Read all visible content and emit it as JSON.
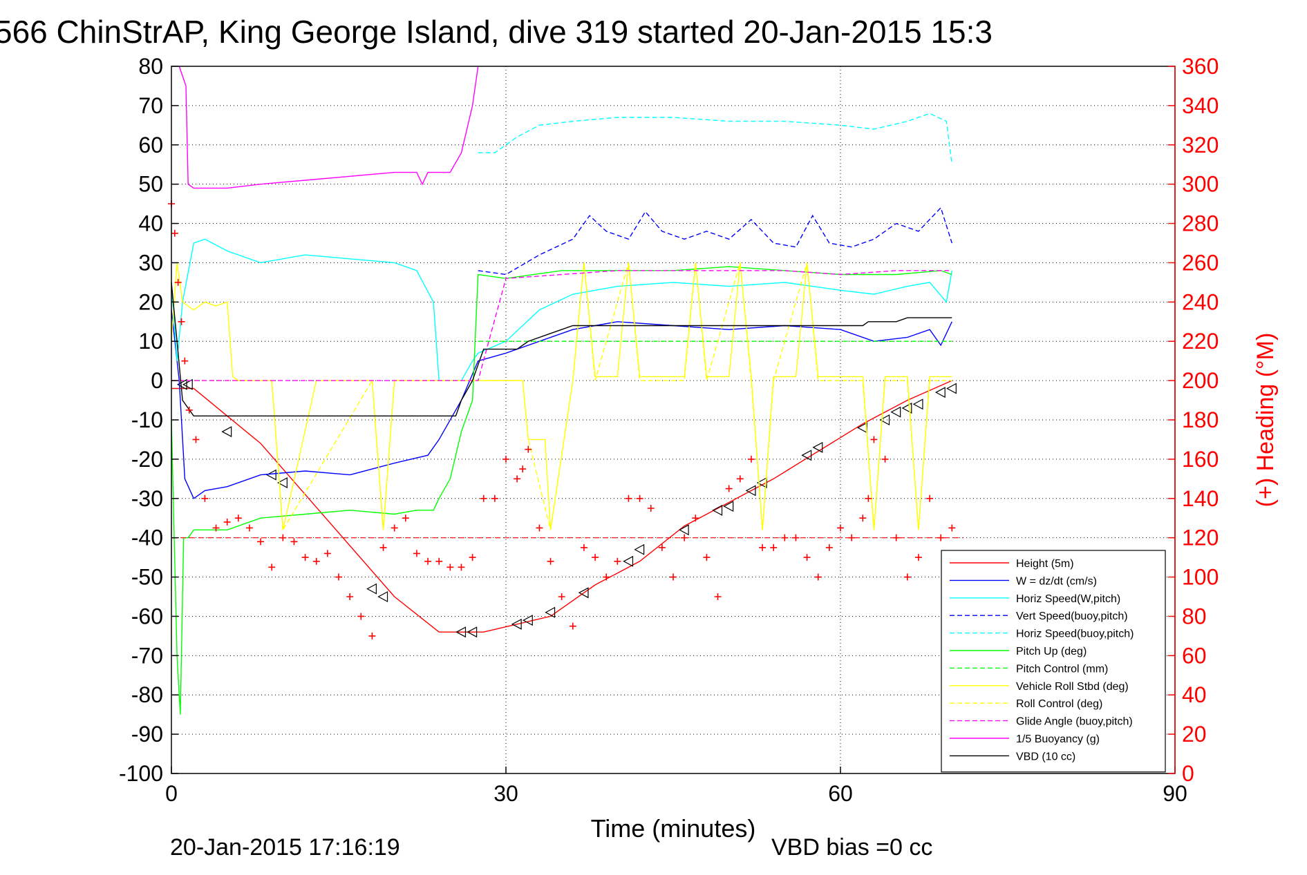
{
  "chart_data": {
    "type": "line",
    "title": "566 ChinStrAP, King George Island, dive 319 started 20-Jan-2015 15:3",
    "xlabel": "Time (minutes)",
    "ylabel_right": "(+) Heading (°M)",
    "footer_left": "20-Jan-2015 17:16:19",
    "footer_right": "VBD bias =0 cc",
    "xlim": [
      0,
      90
    ],
    "ylim": [
      -100,
      80
    ],
    "ylim_right": [
      0,
      360
    ],
    "x_ticks": [
      "0",
      "30",
      "60",
      "90"
    ],
    "y_ticks": [
      "80",
      "70",
      "60",
      "50",
      "40",
      "30",
      "20",
      "10",
      "0",
      "-10",
      "-20",
      "-30",
      "-40",
      "-50",
      "-60",
      "-70",
      "-80",
      "-90",
      "-100"
    ],
    "y_ticks_right": [
      "360",
      "340",
      "320",
      "300",
      "280",
      "260",
      "240",
      "220",
      "200",
      "180",
      "160",
      "140",
      "120",
      "100",
      "80",
      "60",
      "40",
      "20",
      "0"
    ],
    "grid": true,
    "legend_position": "bottom-right",
    "series": [
      {
        "name": "Height (5m)",
        "color": "#ff0000",
        "style": "solid",
        "x": [
          0,
          0.5,
          2,
          5,
          8,
          12,
          16,
          20,
          24,
          26,
          28,
          31,
          34,
          38,
          42,
          46,
          50,
          54,
          58,
          62,
          66,
          70
        ],
        "y": [
          -2,
          -2,
          -2,
          -9,
          -16,
          -29,
          -42,
          -55,
          -64,
          -64,
          -64,
          -62,
          -60,
          -52,
          -46,
          -37,
          -31,
          -25,
          -18,
          -11,
          -5,
          0
        ],
        "markers_x": [
          1,
          1.5,
          5,
          9,
          10,
          18,
          19,
          26,
          27,
          31,
          32,
          34,
          37,
          41,
          42,
          46,
          49,
          50,
          52,
          53,
          57,
          58,
          62,
          64,
          65,
          66,
          67,
          69,
          70
        ],
        "markers_y": [
          -1,
          -1,
          -13,
          -24,
          -26,
          -53,
          -55,
          -64,
          -64,
          -62,
          -61,
          -59,
          -54,
          -46,
          -43,
          -38,
          -33,
          -32,
          -28,
          -26,
          -19,
          -17,
          -12,
          -10,
          -8,
          -7,
          -6,
          -3,
          -2
        ]
      },
      {
        "name": "W = dz/dt (cm/s)",
        "color": "#0000ff",
        "style": "solid",
        "x": [
          0,
          0.7,
          1.2,
          2,
          3,
          5,
          8,
          12,
          16,
          20,
          23,
          24,
          26,
          27.5,
          30,
          33,
          36,
          40,
          45,
          50,
          55,
          60,
          63,
          66,
          68,
          69,
          70
        ],
        "y": [
          18,
          0,
          -25,
          -30,
          -28,
          -27,
          -24,
          -23,
          -24,
          -21,
          -19,
          -15,
          -5,
          5,
          7,
          10,
          13,
          15,
          14,
          13,
          14,
          13,
          10,
          11,
          13,
          9,
          15
        ]
      },
      {
        "name": "Horiz Speed(W,pitch)",
        "color": "#00ffff",
        "style": "solid",
        "x": [
          0,
          0.5,
          1,
          2,
          3,
          5,
          8,
          12,
          16,
          20,
          22,
          23.5,
          24,
          26,
          27,
          27.5,
          30,
          33,
          36,
          40,
          45,
          50,
          55,
          60,
          63,
          66,
          68,
          69.5,
          70
        ],
        "y": [
          25,
          5,
          20,
          35,
          36,
          33,
          30,
          32,
          31,
          30,
          28,
          20,
          0,
          0,
          5,
          7,
          10,
          18,
          22,
          24,
          25,
          24,
          25,
          23,
          22,
          24,
          25,
          20,
          28
        ]
      },
      {
        "name": "Vert Speed(buoy,pitch)",
        "color": "#0000ff",
        "style": "dashed",
        "x": [
          27.5,
          30,
          33,
          36,
          37.5,
          39,
          41,
          42.5,
          44,
          46,
          48,
          50,
          52,
          54,
          56,
          57.5,
          59,
          61,
          63,
          65,
          67,
          69,
          70
        ],
        "y": [
          28,
          27,
          32,
          36,
          42,
          38,
          36,
          43,
          38,
          36,
          38,
          36,
          41,
          35,
          34,
          42,
          35,
          34,
          36,
          40,
          38,
          44,
          35
        ]
      },
      {
        "name": "Horiz Speed(buoy,pitch)",
        "color": "#00ffff",
        "style": "dashed",
        "x": [
          27.5,
          29,
          31,
          33,
          36,
          40,
          45,
          50,
          55,
          60,
          63,
          66,
          68,
          69.5,
          70
        ],
        "y": [
          58,
          58,
          62,
          65,
          66,
          67,
          67,
          66,
          66,
          65,
          64,
          66,
          68,
          66,
          55
        ]
      },
      {
        "name": "Pitch Up (deg)",
        "color": "#00ff00",
        "style": "solid",
        "x": [
          0,
          0.5,
          0.8,
          1.1,
          1.5,
          2,
          3,
          5,
          8,
          12,
          16,
          20,
          22,
          23.5,
          24,
          25,
          26,
          27,
          27.5,
          30,
          35,
          40,
          45,
          50,
          55,
          60,
          65,
          69,
          70
        ],
        "y": [
          -10,
          -70,
          -85,
          -40,
          -40,
          -38,
          -38,
          -38,
          -35,
          -34,
          -33,
          -34,
          -33,
          -33,
          -30,
          -25,
          -13,
          -5,
          27,
          26,
          28,
          28,
          28,
          29,
          28,
          27,
          27,
          28,
          27
        ]
      },
      {
        "name": "Pitch Control (mm)",
        "color": "#00ff00",
        "style": "dashed",
        "x": [
          27.5,
          35,
          45,
          55,
          65,
          70
        ],
        "y": [
          10,
          10,
          10,
          10,
          10,
          10
        ]
      },
      {
        "name": "Vehicle Roll Stbd (deg)",
        "color": "#ffff00",
        "style": "solid",
        "x": [
          0,
          0.5,
          1,
          2,
          3,
          4,
          5,
          5.5,
          6,
          9,
          10,
          13,
          18,
          19,
          20,
          22,
          24,
          26,
          28,
          30,
          31.5,
          32,
          33.5,
          34,
          36,
          37,
          38,
          40,
          41,
          42,
          44,
          46,
          47,
          48,
          50,
          51,
          52,
          53,
          54,
          56,
          57,
          58,
          60,
          62,
          63,
          64,
          66,
          67,
          68,
          69,
          70
        ],
        "y": [
          10,
          30,
          20,
          18,
          20,
          19,
          20,
          1,
          0,
          0,
          -38,
          0,
          0,
          -38,
          0,
          0,
          0,
          0,
          0,
          0,
          0,
          -15,
          -15,
          -38,
          0,
          30,
          1,
          1,
          30,
          1,
          1,
          1,
          30,
          1,
          1,
          30,
          1,
          -38,
          1,
          1,
          30,
          1,
          1,
          1,
          -38,
          1,
          1,
          -38,
          1,
          1,
          1
        ]
      },
      {
        "name": "Roll Control (deg)",
        "color": "#ffff00",
        "style": "dashed",
        "x": [
          0,
          2,
          5,
          9,
          10,
          18,
          19,
          20,
          28,
          31.5,
          32,
          34,
          36,
          37,
          38,
          41,
          42,
          46,
          47,
          48,
          51,
          52,
          53,
          54,
          57,
          58,
          62,
          63,
          64,
          66,
          67,
          68,
          70
        ],
        "y": [
          0,
          0,
          0,
          0,
          -38,
          0,
          -38,
          0,
          0,
          0,
          -15,
          -38,
          0,
          30,
          0,
          30,
          0,
          0,
          30,
          0,
          30,
          0,
          -38,
          0,
          30,
          0,
          0,
          -38,
          0,
          0,
          -38,
          0,
          0
        ]
      },
      {
        "name": "Glide Angle (buoy,pitch)",
        "color": "#ff00ff",
        "style": "dashed",
        "x": [
          0,
          10,
          20,
          27.5,
          30,
          35,
          40,
          45,
          50,
          55,
          60,
          65,
          70
        ],
        "y": [
          0,
          0,
          0,
          0,
          26,
          27,
          28,
          28,
          28,
          28,
          27,
          28,
          28
        ]
      },
      {
        "name": "1/5 Buoyancy (g)",
        "color": "#ff00ff",
        "style": "solid",
        "x": [
          0.7,
          1.3,
          1.5,
          2,
          5,
          8,
          12,
          16,
          20,
          22,
          22.5,
          23,
          25,
          26,
          27,
          27.5
        ],
        "y": [
          80,
          75,
          50,
          49,
          49,
          50,
          51,
          52,
          53,
          53,
          50,
          53,
          53,
          58,
          70,
          80
        ]
      },
      {
        "name": "VBD (10 cc)",
        "color": "#000000",
        "style": "solid",
        "x": [
          0,
          0.5,
          1,
          2,
          5,
          10,
          15,
          20,
          25,
          25.5,
          26,
          27,
          28,
          30,
          31,
          32,
          34,
          36,
          40,
          45,
          50,
          55,
          60,
          62,
          62.5,
          65,
          66,
          68,
          70
        ],
        "y": [
          25,
          10,
          -5,
          -9,
          -9,
          -9,
          -9,
          -9,
          -9,
          -9,
          -5,
          0,
          8,
          8,
          8,
          10,
          12,
          14,
          14,
          14,
          14,
          14,
          14,
          14,
          15,
          15,
          16,
          16,
          16
        ]
      },
      {
        "name": "Heading",
        "axis": "right",
        "color": "#ff0000",
        "style": "plus",
        "x": [
          0,
          0.3,
          0.6,
          0.9,
          1.2,
          1.6,
          2.2,
          3,
          4,
          5,
          6,
          7,
          8,
          9,
          10,
          11,
          12,
          13,
          14,
          15,
          16,
          17,
          18,
          19,
          20,
          21,
          22,
          23,
          24,
          25,
          26,
          27,
          28,
          29,
          30,
          31,
          31.5,
          32,
          33,
          34,
          35,
          36,
          37,
          38,
          39,
          40,
          41,
          42,
          43,
          44,
          45,
          46,
          47,
          48,
          49,
          50,
          51,
          52,
          53,
          54,
          55,
          56,
          57,
          58,
          59,
          60,
          61,
          62,
          62.5,
          63,
          64,
          65,
          66,
          67,
          68,
          69,
          70
        ],
        "y": [
          290,
          275,
          250,
          230,
          210,
          185,
          170,
          140,
          125,
          128,
          130,
          125,
          118,
          105,
          120,
          118,
          110,
          108,
          112,
          100,
          90,
          80,
          70,
          115,
          125,
          130,
          112,
          108,
          108,
          105,
          105,
          110,
          140,
          140,
          160,
          150,
          155,
          165,
          125,
          108,
          90,
          75,
          115,
          110,
          100,
          108,
          140,
          140,
          135,
          115,
          100,
          120,
          130,
          110,
          90,
          145,
          150,
          160,
          115,
          115,
          120,
          120,
          110,
          100,
          115,
          125,
          120,
          130,
          140,
          170,
          160,
          120,
          100,
          110,
          140,
          120,
          125
        ]
      }
    ]
  }
}
